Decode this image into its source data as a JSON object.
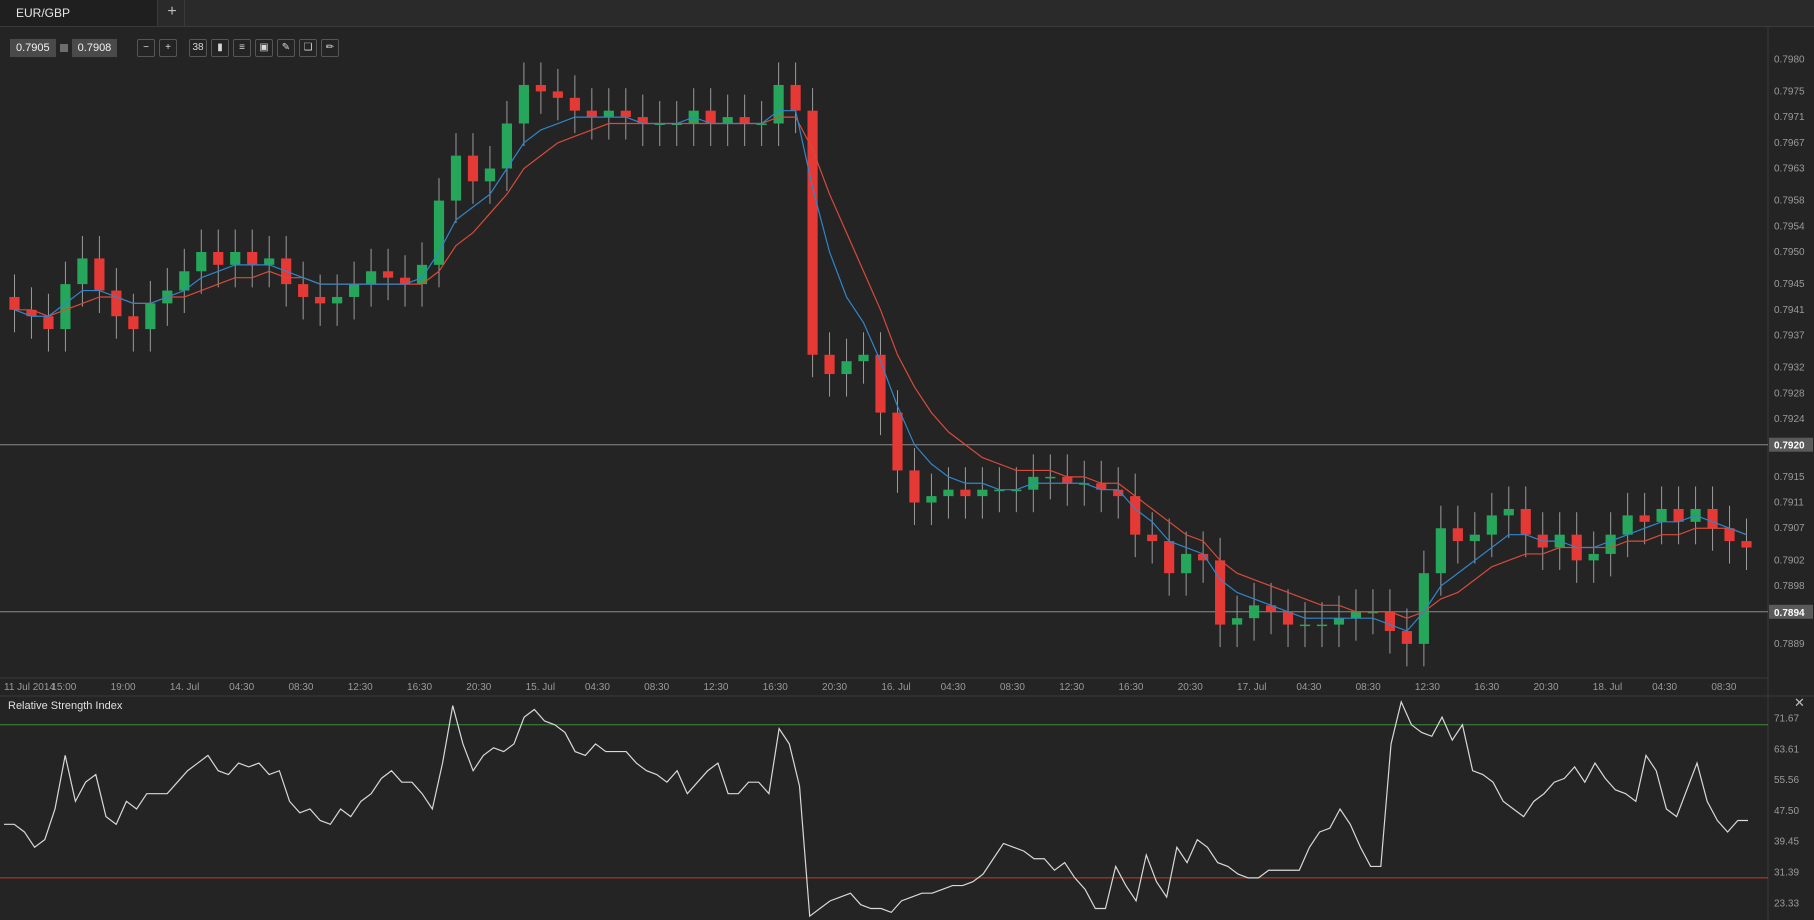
{
  "tabs": [
    {
      "label": "EUR/GBP"
    }
  ],
  "new_tab_label": "+",
  "quote": {
    "bid": "0.7905",
    "ask": "0.7908"
  },
  "toolbar": {
    "icons": [
      "zoom-out-icon",
      "zoom-in-icon",
      "bars-count-icon",
      "candle-type-icon",
      "indicators-icon",
      "template-icon",
      "draw-icon",
      "object-icon",
      "pencil-icon"
    ],
    "bars_label": "38"
  },
  "colors": {
    "bull": "#26a65b",
    "bear": "#e53935",
    "ma_fast": "#2f86c9",
    "ma_slow": "#d64b3a",
    "rsi": "#d8d8d8",
    "rsi_upper": "#3f8a3a",
    "rsi_lower": "#c23b2a"
  },
  "chart_data": [
    {
      "type": "candlestick",
      "symbol": "EUR/GBP",
      "ylim": [
        0.7884,
        0.7983
      ],
      "y_ticks": [
        "0.7980",
        "0.7975",
        "0.7971",
        "0.7967",
        "0.7963",
        "0.7958",
        "0.7954",
        "0.7950",
        "0.7945",
        "0.7941",
        "0.7937",
        "0.7932",
        "0.7928",
        "0.7924",
        "0.7920",
        "0.7915",
        "0.7911",
        "0.7907",
        "0.7902",
        "0.7898",
        "0.7894",
        "0.7889"
      ],
      "x_ticks": [
        "11 Jul 2014",
        "15:00",
        "19:00",
        "14. Jul",
        "04:30",
        "08:30",
        "12:30",
        "16:30",
        "20:30",
        "15. Jul",
        "04:30",
        "08:30",
        "12:30",
        "16:30",
        "20:30",
        "16. Jul",
        "04:30",
        "08:30",
        "12:30",
        "16:30",
        "20:30",
        "17. Jul",
        "04:30",
        "08:30",
        "12:30",
        "16:30",
        "20:30",
        "18. Jul",
        "04:30",
        "08:30"
      ],
      "price_lines": [
        {
          "value": "0.7920"
        },
        {
          "value": "0.7894"
        }
      ],
      "close_series": [
        0.7941,
        0.794,
        0.7938,
        0.7945,
        0.7949,
        0.7944,
        0.794,
        0.7938,
        0.7942,
        0.7944,
        0.7947,
        0.795,
        0.7948,
        0.795,
        0.7948,
        0.7949,
        0.7945,
        0.7943,
        0.7942,
        0.7943,
        0.7945,
        0.7947,
        0.7946,
        0.7945,
        0.7948,
        0.7958,
        0.7965,
        0.7961,
        0.7963,
        0.797,
        0.7976,
        0.7975,
        0.7974,
        0.7972,
        0.7971,
        0.7972,
        0.7971,
        0.797,
        0.797,
        0.797,
        0.7972,
        0.797,
        0.7971,
        0.797,
        0.797,
        0.7976,
        0.7972,
        0.7934,
        0.7931,
        0.7933,
        0.7934,
        0.7925,
        0.7916,
        0.7911,
        0.7912,
        0.7913,
        0.7912,
        0.7913,
        0.7913,
        0.7913,
        0.7915,
        0.7915,
        0.7914,
        0.7914,
        0.7913,
        0.7912,
        0.7906,
        0.7905,
        0.79,
        0.7903,
        0.7902,
        0.7892,
        0.7893,
        0.7895,
        0.7894,
        0.7892,
        0.7892,
        0.7892,
        0.7893,
        0.7894,
        0.7894,
        0.7891,
        0.7889,
        0.79,
        0.7907,
        0.7905,
        0.7906,
        0.7909,
        0.791,
        0.7906,
        0.7904,
        0.7906,
        0.7902,
        0.7903,
        0.7906,
        0.7909,
        0.7908,
        0.791,
        0.7908,
        0.791,
        0.7907,
        0.7905,
        0.7904
      ],
      "ma_fast": [
        0.7941,
        0.794,
        0.794,
        0.7942,
        0.7944,
        0.7944,
        0.7943,
        0.7942,
        0.7942,
        0.7943,
        0.7944,
        0.7946,
        0.7947,
        0.7948,
        0.7948,
        0.7948,
        0.7947,
        0.7946,
        0.7945,
        0.7945,
        0.7945,
        0.7945,
        0.7945,
        0.7945,
        0.7946,
        0.795,
        0.7955,
        0.7957,
        0.7959,
        0.7963,
        0.7967,
        0.7969,
        0.797,
        0.7971,
        0.7971,
        0.7971,
        0.7971,
        0.797,
        0.797,
        0.797,
        0.7971,
        0.797,
        0.797,
        0.797,
        0.797,
        0.7972,
        0.7972,
        0.796,
        0.795,
        0.7943,
        0.7939,
        0.7933,
        0.7926,
        0.792,
        0.7917,
        0.7915,
        0.7914,
        0.7914,
        0.7913,
        0.7913,
        0.7914,
        0.7914,
        0.7914,
        0.7914,
        0.7913,
        0.7913,
        0.791,
        0.7908,
        0.7905,
        0.7904,
        0.7903,
        0.7899,
        0.7897,
        0.7896,
        0.7895,
        0.7894,
        0.7893,
        0.7893,
        0.7893,
        0.7893,
        0.7893,
        0.7892,
        0.7891,
        0.7894,
        0.7898,
        0.79,
        0.7902,
        0.7904,
        0.7906,
        0.7906,
        0.7905,
        0.7905,
        0.7904,
        0.7904,
        0.7905,
        0.7906,
        0.7907,
        0.7908,
        0.7908,
        0.7909,
        0.7908,
        0.7907,
        0.7906
      ],
      "ma_slow": [
        0.7941,
        0.7941,
        0.794,
        0.7941,
        0.7942,
        0.7943,
        0.7943,
        0.7942,
        0.7942,
        0.7943,
        0.7943,
        0.7944,
        0.7945,
        0.7946,
        0.7946,
        0.7947,
        0.7946,
        0.7946,
        0.7945,
        0.7945,
        0.7945,
        0.7945,
        0.7945,
        0.7945,
        0.7945,
        0.7947,
        0.7951,
        0.7953,
        0.7956,
        0.7959,
        0.7963,
        0.7965,
        0.7967,
        0.7968,
        0.7969,
        0.797,
        0.797,
        0.797,
        0.797,
        0.797,
        0.797,
        0.797,
        0.797,
        0.797,
        0.797,
        0.7971,
        0.7971,
        0.7966,
        0.7959,
        0.7953,
        0.7947,
        0.7941,
        0.7934,
        0.7929,
        0.7925,
        0.7922,
        0.792,
        0.7918,
        0.7917,
        0.7916,
        0.7916,
        0.7916,
        0.7915,
        0.7915,
        0.7914,
        0.7914,
        0.7912,
        0.791,
        0.7908,
        0.7906,
        0.7905,
        0.7902,
        0.79,
        0.7899,
        0.7898,
        0.7897,
        0.7896,
        0.7895,
        0.7895,
        0.7894,
        0.7894,
        0.7894,
        0.7893,
        0.7894,
        0.7896,
        0.7897,
        0.7899,
        0.7901,
        0.7902,
        0.7903,
        0.7903,
        0.7904,
        0.7904,
        0.7904,
        0.7904,
        0.7905,
        0.7905,
        0.7906,
        0.7906,
        0.7907,
        0.7907,
        0.7907,
        0.7906
      ]
    },
    {
      "type": "line",
      "title": "Relative Strength Index",
      "ylim": [
        19,
        77
      ],
      "y_ticks": [
        "71.67",
        "63.61",
        "55.56",
        "47.50",
        "39.45",
        "31.39",
        "23.33"
      ],
      "levels": [
        {
          "value": 70
        },
        {
          "value": 30
        }
      ],
      "values": [
        44,
        44,
        42,
        38,
        40,
        48,
        62,
        50,
        55,
        57,
        46,
        44,
        50,
        48,
        52,
        52,
        52,
        55,
        58,
        60,
        62,
        58,
        57,
        60,
        59,
        60,
        57,
        58,
        50,
        47,
        48,
        45,
        44,
        48,
        46,
        50,
        52,
        56,
        58,
        55,
        55,
        52,
        48,
        60,
        75,
        65,
        58,
        62,
        64,
        63,
        65,
        72,
        74,
        71,
        70,
        68,
        63,
        62,
        65,
        63,
        63,
        63,
        60,
        58,
        57,
        55,
        58,
        52,
        55,
        58,
        60,
        52,
        52,
        55,
        55,
        52,
        69,
        65,
        54,
        20,
        22,
        24,
        25,
        26,
        23,
        22,
        22,
        21,
        24,
        25,
        26,
        26,
        27,
        28,
        28,
        29,
        31,
        35,
        39,
        38,
        37,
        35,
        35,
        32,
        34,
        30,
        27,
        22,
        22,
        33,
        28,
        24,
        36,
        29,
        25,
        38,
        34,
        40,
        38,
        34,
        33,
        31,
        30,
        30,
        32,
        32,
        32,
        32,
        38,
        42,
        43,
        48,
        44,
        38,
        33,
        33,
        65,
        76,
        70,
        68,
        67,
        72,
        66,
        70,
        58,
        57,
        55,
        50,
        48,
        46,
        50,
        52,
        55,
        56,
        59,
        55,
        60,
        56,
        53,
        52,
        50,
        62,
        58,
        48,
        46,
        53,
        60,
        50,
        45,
        42,
        45,
        45
      ]
    }
  ]
}
